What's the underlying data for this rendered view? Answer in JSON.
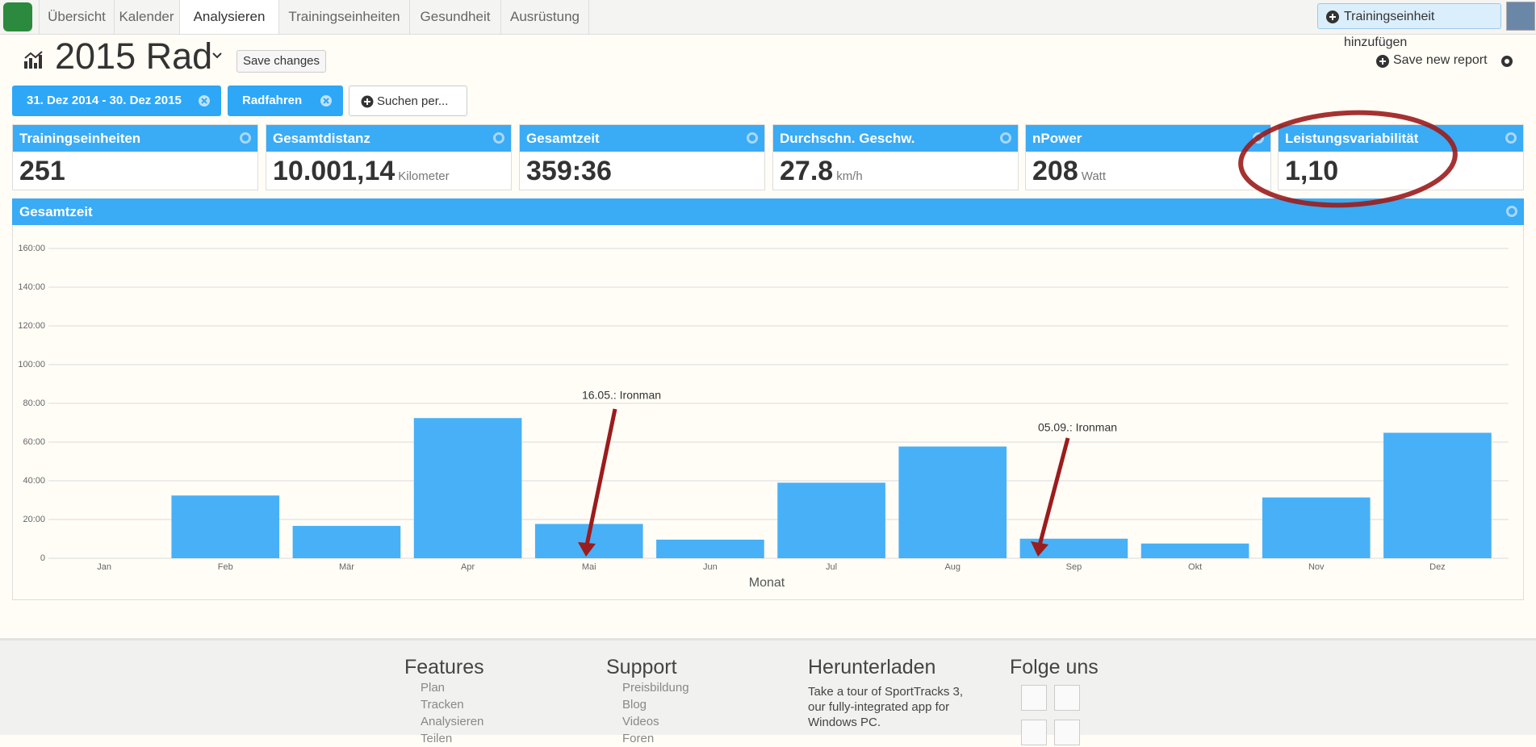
{
  "nav": {
    "tabs": [
      "Übersicht",
      "Kalender",
      "Analysieren",
      "Trainingseinheiten",
      "Gesundheit",
      "Ausrüstung"
    ],
    "add_button": "Trainingseinheit hinzufügen"
  },
  "header": {
    "title": "2015 Rad",
    "save_changes": "Save changes",
    "save_new_report": "Save new report"
  },
  "filters": [
    "31. Dez 2014 - 30. Dez 2015",
    "Radfahren",
    "Suchen per..."
  ],
  "kpis": [
    {
      "label": "Trainingseinheiten",
      "value": "251"
    },
    {
      "label": "Gesamtdistanz",
      "value": "10.001,14",
      "unit": "Kilometer"
    },
    {
      "label": "Gesamtzeit",
      "value": "359:36"
    },
    {
      "label": "Durchschn. Geschw.",
      "value": "27.8",
      "unit": "km/h"
    },
    {
      "label": "nPower",
      "value": "208",
      "unit": "Watt"
    },
    {
      "label": "Leistungsvariabilität",
      "value": "1,10"
    }
  ],
  "chart_data": {
    "type": "bar",
    "title": "Gesamtzeit",
    "x_label": "Monat",
    "categories": [
      "Jan",
      "Feb",
      "Mär",
      "Apr",
      "Mai",
      "Jun",
      "Jul",
      "Aug",
      "Sep",
      "Okt",
      "Nov",
      "Dez"
    ],
    "values": [
      0,
      32.4,
      16.7,
      72.4,
      17.7,
      9.6,
      39.0,
      57.7,
      10.1,
      7.6,
      31.4,
      64.8
    ],
    "color": "#48b0f7",
    "ylim": [
      0,
      160
    ],
    "yticks": [
      0,
      {
        "value": 20,
        "label": "20:00"
      },
      {
        "value": 40,
        "label": "40:00"
      },
      {
        "value": 60,
        "label": "60:00"
      },
      {
        "value": 80,
        "label": "80:00"
      },
      {
        "value": 100,
        "label": "100:00"
      },
      {
        "value": 120,
        "label": "120:00"
      },
      {
        "value": 140,
        "label": "140:00"
      },
      {
        "value": 160,
        "label": "160:00"
      }
    ],
    "grid": true,
    "annotations": [
      "16.05.: Ironman",
      "05.09.: Ironman"
    ]
  },
  "footer": {
    "features": {
      "title": "Features",
      "links": [
        "Plan",
        "Tracken",
        "Analysieren",
        "Teilen"
      ]
    },
    "support": {
      "title": "Support",
      "links": [
        "Preisbildung",
        "Blog",
        "Videos",
        "Foren"
      ]
    },
    "download": {
      "title": "Herunterladen",
      "text": "Take a tour of SportTracks 3, our fully-integrated app for Windows PC."
    },
    "social": {
      "title": "Folge uns"
    }
  }
}
